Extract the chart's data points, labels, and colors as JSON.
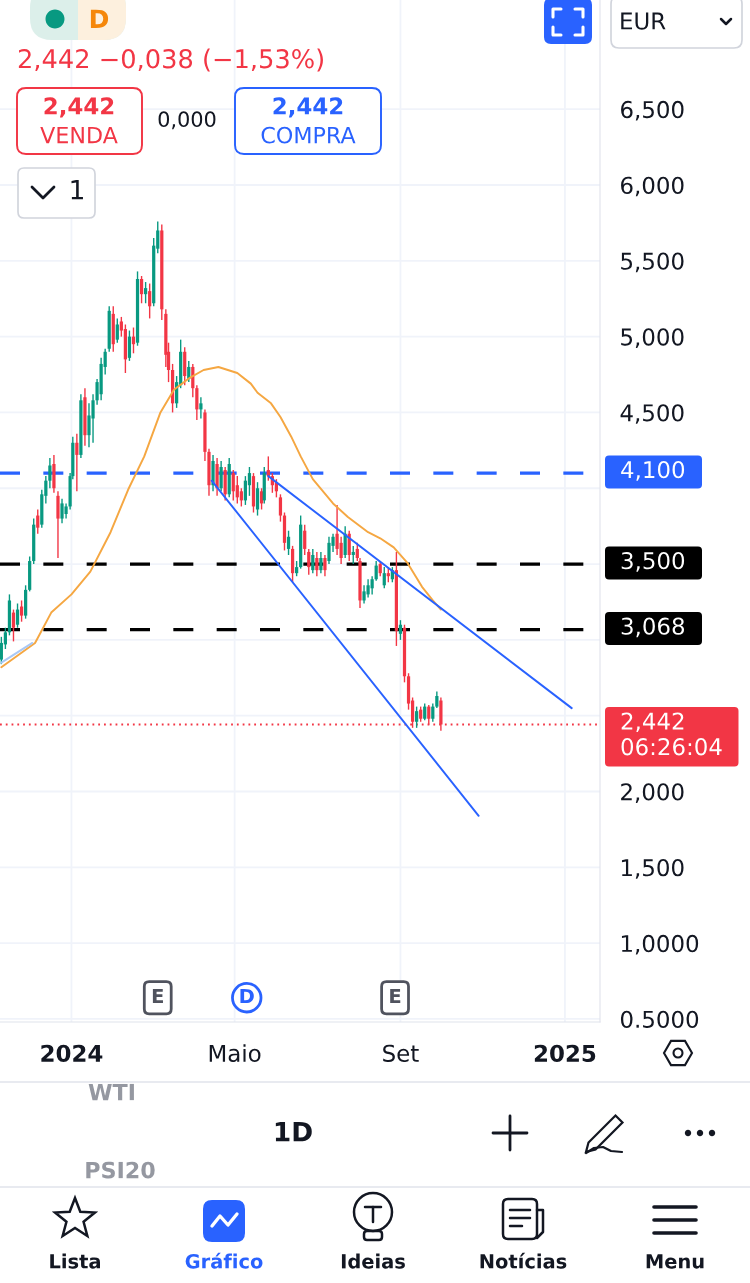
{
  "chart_data": {
    "type": "candlestick",
    "x": [
      "2023-11-10",
      "2023-11-13",
      "2023-11-16",
      "2023-11-19",
      "2023-11-22",
      "2023-11-25",
      "2023-11-28",
      "2023-12-01",
      "2023-12-04",
      "2023-12-07",
      "2023-12-10",
      "2023-12-13",
      "2023-12-16",
      "2023-12-19",
      "2023-12-22",
      "2023-12-25",
      "2023-12-28",
      "2023-12-31",
      "2024-01-02",
      "2024-01-05",
      "2024-01-08",
      "2024-01-11",
      "2024-01-14",
      "2024-01-17",
      "2024-01-20",
      "2024-01-23",
      "2024-01-26",
      "2024-01-29",
      "2024-02-01",
      "2024-02-04",
      "2024-02-07",
      "2024-02-10",
      "2024-02-13",
      "2024-02-16",
      "2024-02-19",
      "2024-02-22",
      "2024-02-25",
      "2024-02-28",
      "2024-03-02",
      "2024-03-05",
      "2024-03-08",
      "2024-03-11",
      "2024-03-13",
      "2024-03-16",
      "2024-03-19",
      "2024-03-22",
      "2024-03-25",
      "2024-03-28",
      "2024-03-31",
      "2024-04-03",
      "2024-04-06",
      "2024-04-09",
      "2024-04-12",
      "2024-04-15",
      "2024-04-18",
      "2024-04-21",
      "2024-04-24",
      "2024-04-27",
      "2024-04-30",
      "2024-05-03",
      "2024-05-06",
      "2024-05-09",
      "2024-05-12",
      "2024-05-15",
      "2024-05-18",
      "2024-05-21",
      "2024-05-23",
      "2024-05-26",
      "2024-05-29",
      "2024-06-01",
      "2024-06-04",
      "2024-06-07",
      "2024-06-10",
      "2024-06-13",
      "2024-06-16",
      "2024-06-19",
      "2024-06-22",
      "2024-06-25",
      "2024-06-28",
      "2024-07-01",
      "2024-07-04",
      "2024-07-07",
      "2024-07-10",
      "2024-07-13",
      "2024-07-16",
      "2024-07-19",
      "2024-07-22",
      "2024-07-25",
      "2024-07-28",
      "2024-07-31",
      "2024-08-02",
      "2024-08-05",
      "2024-08-08",
      "2024-08-11",
      "2024-08-14",
      "2024-08-17",
      "2024-08-20",
      "2024-08-23",
      "2024-08-26",
      "2024-08-29",
      "2024-09-01",
      "2024-09-04",
      "2024-09-07",
      "2024-09-10",
      "2024-09-13",
      "2024-09-16",
      "2024-09-19",
      "2024-09-22",
      "2024-09-25",
      "2024-09-28",
      "2024-10-01"
    ],
    "ohlc": [
      [
        2.87,
        3.02,
        2.84,
        2.98
      ],
      [
        2.97,
        3.08,
        2.94,
        3.05
      ],
      [
        3.05,
        3.3,
        3.03,
        3.26
      ],
      [
        3.18,
        3.2,
        2.99,
        3.08
      ],
      [
        3.1,
        3.24,
        3.08,
        3.2
      ],
      [
        3.22,
        3.26,
        3.12,
        3.16
      ],
      [
        3.16,
        3.36,
        3.14,
        3.33
      ],
      [
        3.33,
        3.55,
        3.32,
        3.52
      ],
      [
        3.52,
        3.8,
        3.5,
        3.76
      ],
      [
        3.82,
        3.86,
        3.7,
        3.74
      ],
      [
        3.76,
        3.99,
        3.74,
        3.96
      ],
      [
        3.95,
        4.08,
        3.9,
        4.05
      ],
      [
        4.05,
        4.2,
        4.0,
        4.15
      ],
      [
        4.16,
        4.22,
        3.97,
        4.0
      ],
      [
        3.95,
        3.98,
        3.54,
        3.8
      ],
      [
        3.8,
        3.93,
        3.77,
        3.9
      ],
      [
        3.83,
        3.9,
        3.8,
        3.88
      ],
      [
        3.88,
        4.1,
        3.86,
        4.08
      ],
      [
        4.08,
        4.34,
        4.06,
        4.3
      ],
      [
        4.3,
        4.36,
        3.98,
        4.22
      ],
      [
        4.22,
        4.62,
        4.2,
        4.58
      ],
      [
        4.6,
        4.66,
        4.28,
        4.35
      ],
      [
        4.35,
        4.56,
        4.27,
        4.48
      ],
      [
        4.46,
        4.62,
        4.3,
        4.58
      ],
      [
        4.58,
        4.72,
        4.55,
        4.7
      ],
      [
        4.62,
        4.86,
        4.58,
        4.82
      ],
      [
        4.8,
        4.92,
        4.75,
        4.9
      ],
      [
        4.92,
        5.2,
        4.9,
        5.17
      ],
      [
        5.15,
        5.2,
        4.9,
        4.95
      ],
      [
        4.98,
        5.12,
        4.96,
        5.08
      ],
      [
        5.1,
        5.13,
        5.0,
        5.04
      ],
      [
        5.05,
        5.08,
        4.76,
        4.85
      ],
      [
        4.86,
        5.04,
        4.84,
        5.0
      ],
      [
        5.0,
        5.06,
        4.89,
        4.95
      ],
      [
        4.96,
        5.43,
        4.94,
        5.38
      ],
      [
        5.38,
        5.4,
        5.22,
        5.28
      ],
      [
        5.28,
        5.36,
        5.22,
        5.32
      ],
      [
        5.3,
        5.35,
        5.12,
        5.2
      ],
      [
        5.22,
        5.65,
        5.2,
        5.6
      ],
      [
        5.58,
        5.76,
        5.55,
        5.7
      ],
      [
        5.7,
        5.74,
        5.11,
        5.18
      ],
      [
        5.15,
        5.18,
        4.8,
        4.88
      ],
      [
        4.9,
        4.96,
        4.7,
        4.78
      ],
      [
        4.78,
        4.82,
        4.5,
        4.56
      ],
      [
        4.56,
        4.74,
        4.53,
        4.7
      ],
      [
        4.68,
        4.98,
        4.66,
        4.9
      ],
      [
        4.9,
        4.93,
        4.68,
        4.74
      ],
      [
        4.72,
        4.84,
        4.7,
        4.8
      ],
      [
        4.8,
        4.82,
        4.6,
        4.66
      ],
      [
        4.66,
        4.68,
        4.45,
        4.52
      ],
      [
        4.52,
        4.6,
        4.46,
        4.56
      ],
      [
        4.5,
        4.52,
        4.18,
        4.24
      ],
      [
        4.24,
        4.26,
        3.95,
        4.02
      ],
      [
        4.02,
        4.22,
        3.98,
        4.18
      ],
      [
        4.16,
        4.2,
        3.95,
        4.0
      ],
      [
        4.0,
        4.18,
        3.98,
        4.14
      ],
      [
        4.12,
        4.14,
        3.92,
        3.96
      ],
      [
        3.96,
        4.2,
        3.94,
        4.16
      ],
      [
        4.1,
        4.12,
        3.92,
        3.98
      ],
      [
        4.02,
        4.08,
        3.9,
        3.94
      ],
      [
        3.98,
        4.0,
        3.88,
        3.92
      ],
      [
        3.92,
        4.08,
        3.89,
        4.05
      ],
      [
        4.02,
        4.14,
        3.95,
        4.1
      ],
      [
        4.08,
        4.1,
        3.84,
        3.88
      ],
      [
        3.86,
        4.04,
        3.82,
        4.0
      ],
      [
        3.98,
        4.0,
        3.86,
        3.9
      ],
      [
        3.92,
        4.14,
        3.9,
        4.1
      ],
      [
        4.12,
        4.21,
        4.05,
        4.08
      ],
      [
        4.08,
        4.1,
        3.97,
        4.02
      ],
      [
        4.04,
        4.06,
        3.94,
        3.98
      ],
      [
        3.94,
        3.96,
        3.78,
        3.82
      ],
      [
        3.82,
        3.84,
        3.59,
        3.64
      ],
      [
        3.6,
        3.72,
        3.56,
        3.68
      ],
      [
        3.6,
        3.62,
        3.38,
        3.44
      ],
      [
        3.44,
        3.52,
        3.42,
        3.48
      ],
      [
        3.48,
        3.82,
        3.47,
        3.76
      ],
      [
        3.72,
        3.76,
        3.56,
        3.6
      ],
      [
        3.58,
        3.6,
        3.43,
        3.48
      ],
      [
        3.46,
        3.6,
        3.44,
        3.56
      ],
      [
        3.54,
        3.58,
        3.42,
        3.46
      ],
      [
        3.46,
        3.58,
        3.44,
        3.54
      ],
      [
        3.54,
        3.56,
        3.42,
        3.46
      ],
      [
        3.52,
        3.68,
        3.5,
        3.64
      ],
      [
        3.62,
        3.7,
        3.58,
        3.68
      ],
      [
        3.7,
        3.89,
        3.56,
        3.6
      ],
      [
        3.64,
        3.68,
        3.5,
        3.54
      ],
      [
        3.56,
        3.75,
        3.54,
        3.7
      ],
      [
        3.7,
        3.72,
        3.52,
        3.56
      ],
      [
        3.56,
        3.62,
        3.5,
        3.58
      ],
      [
        3.6,
        3.64,
        3.52,
        3.54
      ],
      [
        3.52,
        3.54,
        3.21,
        3.26
      ],
      [
        3.26,
        3.36,
        3.24,
        3.32
      ],
      [
        3.3,
        3.4,
        3.28,
        3.36
      ],
      [
        3.34,
        3.42,
        3.3,
        3.4
      ],
      [
        3.4,
        3.52,
        3.39,
        3.49
      ],
      [
        3.5,
        3.52,
        3.42,
        3.44
      ],
      [
        3.36,
        3.48,
        3.34,
        3.44
      ],
      [
        3.44,
        3.48,
        3.38,
        3.42
      ],
      [
        3.4,
        3.48,
        3.38,
        3.46
      ],
      [
        3.46,
        3.58,
        2.96,
        3.06
      ],
      [
        3.04,
        3.13,
        3.0,
        3.1
      ],
      [
        3.08,
        3.1,
        2.72,
        2.76
      ],
      [
        2.76,
        2.78,
        2.54,
        2.58
      ],
      [
        2.6,
        2.62,
        2.42,
        2.46
      ],
      [
        2.46,
        2.56,
        2.42,
        2.53
      ],
      [
        2.54,
        2.56,
        2.46,
        2.48
      ],
      [
        2.48,
        2.58,
        2.47,
        2.56
      ],
      [
        2.56,
        2.57,
        2.44,
        2.48
      ],
      [
        2.48,
        2.58,
        2.46,
        2.56
      ],
      [
        2.56,
        2.66,
        2.55,
        2.63
      ],
      [
        2.6,
        2.62,
        2.4,
        2.442
      ]
    ],
    "series": [
      {
        "type": "line",
        "color": "#f5a742",
        "x": [
          "2023-11-10",
          "2023-12-05",
          "2023-12-17",
          "2024-01-01",
          "2024-01-15",
          "2024-01-30",
          "2024-02-12",
          "2024-02-24",
          "2024-03-07",
          "2024-03-17",
          "2024-03-29",
          "2024-04-08",
          "2024-04-19",
          "2024-05-03",
          "2024-05-13",
          "2024-05-18",
          "2024-05-28",
          "2024-06-04",
          "2024-06-12",
          "2024-06-19",
          "2024-06-28",
          "2024-07-13",
          "2024-07-24",
          "2024-08-08",
          "2024-08-17",
          "2024-08-27",
          "2024-09-06",
          "2024-09-17",
          "2024-09-25",
          "2024-10-01"
        ],
        "values": [
          2.82,
          2.98,
          3.18,
          3.3,
          3.45,
          3.71,
          3.99,
          4.21,
          4.5,
          4.65,
          4.73,
          4.78,
          4.8,
          4.76,
          4.69,
          4.63,
          4.56,
          4.47,
          4.34,
          4.21,
          4.06,
          3.9,
          3.81,
          3.71,
          3.67,
          3.61,
          3.51,
          3.35,
          3.26,
          3.2
        ]
      },
      {
        "type": "line",
        "color": "#a9c8f5",
        "x": [
          "2023-11-10",
          "2023-12-03"
        ],
        "values": [
          2.85,
          2.98
        ]
      },
      {
        "type": "line",
        "color": "#2962ff",
        "x": [
          "2024-05-26",
          "2025-01-06"
        ],
        "values": [
          4.08,
          2.55
        ]
      },
      {
        "type": "line",
        "color": "#2962ff",
        "x": [
          "2024-04-14",
          "2024-10-29"
        ],
        "values": [
          4.05,
          1.84
        ]
      }
    ],
    "xlim": [
      "2023-11-09",
      "2025-01-27"
    ],
    "ylim": [
      0.48,
      7.22
    ],
    "xticks": [
      {
        "value": "2024-01-01",
        "label": "2024"
      },
      {
        "value": "2024-05-01",
        "label": "Maio"
      },
      {
        "value": "2024-09-01",
        "label": "Set"
      },
      {
        "value": "2025-01-01",
        "label": "2025"
      }
    ],
    "yticks": [
      {
        "value": 0.5,
        "label": "0.5000"
      },
      {
        "value": 1.0,
        "label": "1,0000"
      },
      {
        "value": 1.5,
        "label": "1,500"
      },
      {
        "value": 2.0,
        "label": "2,000"
      },
      {
        "value": 2.5,
        "label": null
      },
      {
        "value": 3.0,
        "label": null
      },
      {
        "value": 3.5,
        "label": null
      },
      {
        "value": 4.0,
        "label": null
      },
      {
        "value": 4.5,
        "label": "4,500"
      },
      {
        "value": 5.0,
        "label": "5,000"
      },
      {
        "value": 5.5,
        "label": "5,500"
      },
      {
        "value": 6.0,
        "label": "6,000"
      },
      {
        "value": 6.5,
        "label": "6,500"
      }
    ],
    "grid": true,
    "ref_lines": [
      {
        "axis": "y",
        "value": 4.1,
        "label": "4,100",
        "color": "#2962ff",
        "line_style": "dashed"
      },
      {
        "axis": "y",
        "value": 3.5,
        "label": "3,500",
        "color": "#000000",
        "line_style": "dashed"
      },
      {
        "axis": "y",
        "value": 3.068,
        "label": "3,068",
        "color": "#000000",
        "line_style": "dashed"
      },
      {
        "axis": "y",
        "value": 2.442,
        "label": "2,442\n06:26:04",
        "color": "#f23645",
        "line_style": "dotted"
      }
    ],
    "annotations": [
      "D",
      "2,442 −0,038 (−1,53%)",
      "2,442",
      "VENDA",
      "0,000",
      "2,442",
      "COMPRA",
      "1",
      "EUR",
      {
        "text": "E",
        "x": "2024-03-05",
        "y": 0.64
      },
      {
        "text": "D",
        "x": "2024-05-10",
        "y": 0.64
      },
      {
        "text": "E",
        "x": "2024-08-28",
        "y": 0.64
      },
      "WTI",
      "1D",
      "PSI20",
      "Lista",
      "Gráfico",
      "Ideias",
      "Notícias",
      "Menu"
    ]
  }
}
